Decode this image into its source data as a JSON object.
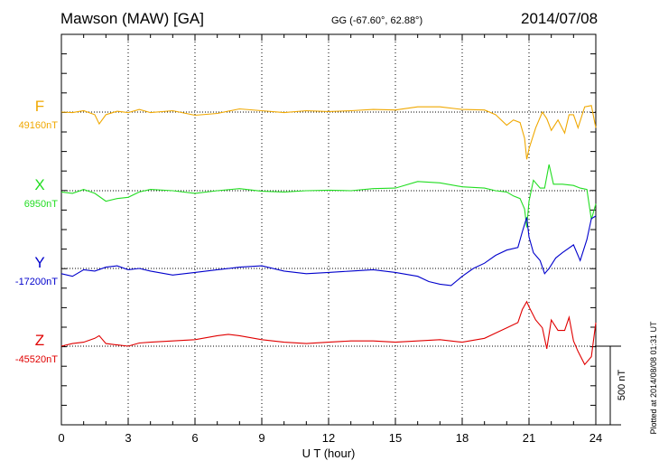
{
  "header": {
    "title": "Mawson (MAW)  [GA]",
    "coords": "GG (-67.60°,  62.88°)",
    "date": "2014/07/08",
    "plotted_note": "Plotted at 2014/08/08 01:31  UT"
  },
  "scale_bar": {
    "label": "500 nT",
    "value_nT": 500
  },
  "colors": {
    "F": "#f0a800",
    "X": "#22dd22",
    "Y": "#0000cc",
    "Z": "#e00000"
  },
  "chart_data": {
    "type": "line",
    "title": "Mawson (MAW)  [GA]",
    "xlabel": "U T (hour)",
    "xlim": [
      0,
      24
    ],
    "xticks": [
      "0",
      "3",
      "6",
      "9",
      "12",
      "15",
      "18",
      "21",
      "24"
    ],
    "grid": "vertical dotted at 3-hour intervals",
    "series": [
      {
        "name": "F",
        "baseline_label": "49160nT",
        "baseline": 49160,
        "x": [
          0,
          0.5,
          1,
          1.5,
          1.7,
          2,
          2.5,
          3,
          3.5,
          4,
          5,
          6,
          7,
          8,
          9,
          10,
          11,
          12,
          13,
          14,
          15,
          16,
          17,
          18,
          19,
          19.5,
          20,
          20.3,
          20.6,
          20.8,
          20.9,
          21,
          21.3,
          21.6,
          21.8,
          22,
          22.3,
          22.6,
          22.8,
          23,
          23.2,
          23.5,
          23.8,
          24
        ],
        "values": [
          49160,
          49158,
          49165,
          49150,
          49115,
          49150,
          49163,
          49158,
          49170,
          49158,
          49165,
          49148,
          49155,
          49172,
          49165,
          49158,
          49165,
          49162,
          49165,
          49170,
          49168,
          49180,
          49180,
          49170,
          49168,
          49150,
          49110,
          49130,
          49120,
          49060,
          48980,
          49020,
          49100,
          49160,
          49135,
          49090,
          49130,
          49080,
          49150,
          49150,
          49100,
          49180,
          49185,
          49100
        ]
      },
      {
        "name": "X",
        "baseline_label": "6950nT",
        "baseline": 6950,
        "x": [
          0,
          0.5,
          1,
          1.5,
          2,
          2.5,
          3,
          3.5,
          4,
          5,
          6,
          7,
          8,
          9,
          10,
          11,
          12,
          13,
          14,
          15,
          16,
          17,
          18,
          19,
          19.5,
          20,
          20.3,
          20.6,
          20.8,
          20.9,
          21,
          21.2,
          21.5,
          21.7,
          21.9,
          22.1,
          22.5,
          23,
          23.3,
          23.6,
          23.8,
          24
        ],
        "values": [
          6945,
          6940,
          6955,
          6940,
          6910,
          6920,
          6925,
          6945,
          6955,
          6950,
          6940,
          6950,
          6958,
          6948,
          6945,
          6950,
          6952,
          6950,
          6958,
          6960,
          6985,
          6980,
          6965,
          6960,
          6950,
          6945,
          6930,
          6920,
          6880,
          6810,
          6910,
          6990,
          6960,
          6960,
          7050,
          6975,
          6975,
          6970,
          6960,
          6955,
          6840,
          6900
        ]
      },
      {
        "name": "Y",
        "baseline_label": "-17200nT",
        "baseline": -17200,
        "x": [
          0,
          0.5,
          1,
          1.5,
          2,
          2.5,
          3,
          3.5,
          4,
          5,
          6,
          7,
          8,
          9,
          10,
          11,
          12,
          13,
          14,
          15,
          16,
          16.5,
          17,
          17.5,
          18,
          18.5,
          19,
          19.5,
          20,
          20.5,
          20.7,
          20.9,
          21,
          21.2,
          21.5,
          21.7,
          21.9,
          22.2,
          22.5,
          23,
          23.3,
          23.6,
          23.8,
          24
        ],
        "values": [
          -17220,
          -17230,
          -17205,
          -17210,
          -17195,
          -17190,
          -17205,
          -17200,
          -17210,
          -17225,
          -17215,
          -17205,
          -17195,
          -17190,
          -17210,
          -17220,
          -17215,
          -17210,
          -17205,
          -17215,
          -17230,
          -17250,
          -17260,
          -17265,
          -17230,
          -17200,
          -17180,
          -17150,
          -17130,
          -17120,
          -17060,
          -17005,
          -17080,
          -17140,
          -17170,
          -17220,
          -17200,
          -17160,
          -17140,
          -17110,
          -17170,
          -17090,
          -17010,
          -17000
        ]
      },
      {
        "name": "Z",
        "baseline_label": "-45520nT",
        "baseline": -45520,
        "x": [
          0,
          0.5,
          1,
          1.5,
          1.7,
          2,
          2.5,
          3,
          3.5,
          4,
          5,
          6,
          7,
          7.5,
          8,
          9,
          10,
          11,
          12,
          13,
          14,
          15,
          16,
          17,
          18,
          19,
          19.5,
          20,
          20.5,
          20.7,
          20.9,
          21,
          21.3,
          21.6,
          21.8,
          22,
          22.3,
          22.6,
          22.8,
          23,
          23.2,
          23.5,
          23.8,
          24
        ],
        "values": [
          -45520,
          -45510,
          -45505,
          -45490,
          -45480,
          -45510,
          -45515,
          -45520,
          -45508,
          -45505,
          -45500,
          -45495,
          -45480,
          -45475,
          -45480,
          -45495,
          -45505,
          -45510,
          -45505,
          -45500,
          -45500,
          -45505,
          -45500,
          -45495,
          -45505,
          -45490,
          -45470,
          -45450,
          -45430,
          -45380,
          -45350,
          -45370,
          -45420,
          -45450,
          -45530,
          -45420,
          -45460,
          -45460,
          -45410,
          -45500,
          -45540,
          -45590,
          -45560,
          -45430
        ]
      }
    ]
  }
}
